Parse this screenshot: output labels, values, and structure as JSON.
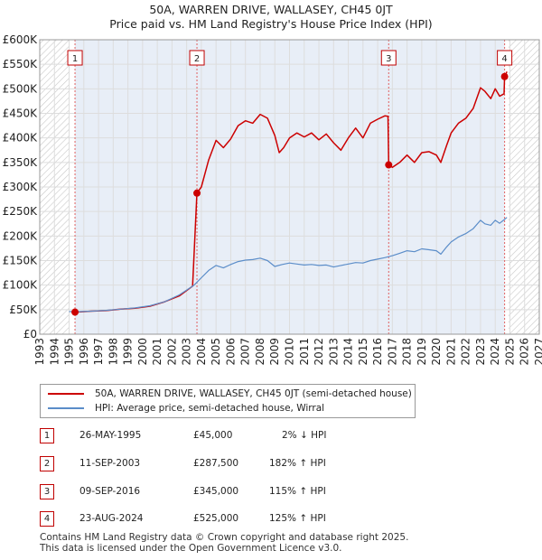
{
  "title_line1": "50A, WARREN DRIVE, WALLASEY, CH45 0JT",
  "title_line2": "Price paid vs. HM Land Registry's House Price Index (HPI)",
  "colors": {
    "price": "#cc0000",
    "hpi": "#5b8dc9",
    "shade": "#e8eef7",
    "hatch": "#c8c8c8",
    "marker_line": "#e06060",
    "grid": "#dddddd"
  },
  "chart_data": {
    "type": "line",
    "title": "Price paid vs. HM Land Registry's House Price Index (HPI)",
    "xlabel": "",
    "ylabel": "",
    "xlim": [
      1993,
      2027
    ],
    "ylim": [
      0,
      600000
    ],
    "x_ticks": [
      "1993",
      "1994",
      "1995",
      "1996",
      "1997",
      "1998",
      "1999",
      "2000",
      "2001",
      "2002",
      "2003",
      "2004",
      "2005",
      "2006",
      "2007",
      "2008",
      "2009",
      "2010",
      "2011",
      "2012",
      "2013",
      "2014",
      "2015",
      "2016",
      "2017",
      "2018",
      "2019",
      "2020",
      "2021",
      "2022",
      "2023",
      "2024",
      "2025",
      "2026",
      "2027"
    ],
    "y_ticks": [
      {
        "value": 0,
        "label": "£0"
      },
      {
        "value": 50000,
        "label": "£50K"
      },
      {
        "value": 100000,
        "label": "£100K"
      },
      {
        "value": 150000,
        "label": "£150K"
      },
      {
        "value": 200000,
        "label": "£200K"
      },
      {
        "value": 250000,
        "label": "£250K"
      },
      {
        "value": 300000,
        "label": "£300K"
      },
      {
        "value": 350000,
        "label": "£350K"
      },
      {
        "value": 400000,
        "label": "£400K"
      },
      {
        "value": 450000,
        "label": "£450K"
      },
      {
        "value": 500000,
        "label": "£500K"
      },
      {
        "value": 550000,
        "label": "£550K"
      },
      {
        "value": 600000,
        "label": "£600K"
      }
    ],
    "data_start": 1995.0,
    "data_end": 2024.9,
    "series": [
      {
        "name": "50A, WARREN DRIVE, WALLASEY, CH45 0JT (semi-detached house)",
        "color": "#cc0000",
        "points": [
          [
            1995.4,
            45000
          ],
          [
            1995.8,
            45500
          ],
          [
            1996.5,
            47000
          ],
          [
            1997.5,
            48000
          ],
          [
            1998.5,
            51000
          ],
          [
            1999.5,
            53000
          ],
          [
            2000.5,
            57000
          ],
          [
            2001.5,
            66000
          ],
          [
            2002.5,
            78000
          ],
          [
            2003.4,
            98000
          ],
          [
            2003.7,
            287500
          ],
          [
            2004.0,
            300000
          ],
          [
            2004.5,
            355000
          ],
          [
            2005.0,
            395000
          ],
          [
            2005.5,
            380000
          ],
          [
            2006.0,
            398000
          ],
          [
            2006.5,
            425000
          ],
          [
            2007.0,
            435000
          ],
          [
            2007.5,
            430000
          ],
          [
            2008.0,
            448000
          ],
          [
            2008.5,
            440000
          ],
          [
            2009.0,
            405000
          ],
          [
            2009.3,
            370000
          ],
          [
            2009.6,
            380000
          ],
          [
            2010.0,
            400000
          ],
          [
            2010.5,
            410000
          ],
          [
            2011.0,
            402000
          ],
          [
            2011.5,
            410000
          ],
          [
            2012.0,
            396000
          ],
          [
            2012.5,
            408000
          ],
          [
            2013.0,
            390000
          ],
          [
            2013.5,
            375000
          ],
          [
            2014.0,
            400000
          ],
          [
            2014.5,
            420000
          ],
          [
            2015.0,
            400000
          ],
          [
            2015.5,
            430000
          ],
          [
            2016.0,
            438000
          ],
          [
            2016.5,
            445000
          ],
          [
            2016.7,
            444000
          ],
          [
            2016.75,
            345000
          ],
          [
            2017.0,
            340000
          ],
          [
            2017.5,
            350000
          ],
          [
            2018.0,
            365000
          ],
          [
            2018.5,
            350000
          ],
          [
            2019.0,
            370000
          ],
          [
            2019.5,
            372000
          ],
          [
            2020.0,
            365000
          ],
          [
            2020.3,
            350000
          ],
          [
            2020.7,
            385000
          ],
          [
            2021.0,
            410000
          ],
          [
            2021.5,
            430000
          ],
          [
            2022.0,
            440000
          ],
          [
            2022.5,
            460000
          ],
          [
            2023.0,
            502000
          ],
          [
            2023.3,
            495000
          ],
          [
            2023.7,
            480000
          ],
          [
            2024.0,
            500000
          ],
          [
            2024.3,
            485000
          ],
          [
            2024.6,
            490000
          ],
          [
            2024.64,
            525000
          ],
          [
            2024.8,
            535000
          ]
        ]
      },
      {
        "name": "HPI: Average price, semi-detached house, Wirral",
        "color": "#5b8dc9",
        "points": [
          [
            1995.0,
            46000
          ],
          [
            1995.5,
            45800
          ],
          [
            1996.5,
            47000
          ],
          [
            1997.5,
            48500
          ],
          [
            1998.5,
            51000
          ],
          [
            1999.5,
            53500
          ],
          [
            2000.5,
            58000
          ],
          [
            2001.5,
            66000
          ],
          [
            2002.5,
            80000
          ],
          [
            2003.5,
            100000
          ],
          [
            2004.0,
            115000
          ],
          [
            2004.5,
            130000
          ],
          [
            2005.0,
            140000
          ],
          [
            2005.5,
            135000
          ],
          [
            2006.0,
            142000
          ],
          [
            2006.5,
            148000
          ],
          [
            2007.0,
            151000
          ],
          [
            2007.5,
            152000
          ],
          [
            2008.0,
            155000
          ],
          [
            2008.5,
            150000
          ],
          [
            2009.0,
            138000
          ],
          [
            2009.5,
            142000
          ],
          [
            2010.0,
            145000
          ],
          [
            2010.5,
            143000
          ],
          [
            2011.0,
            141000
          ],
          [
            2011.5,
            142000
          ],
          [
            2012.0,
            140000
          ],
          [
            2012.5,
            141000
          ],
          [
            2013.0,
            137000
          ],
          [
            2013.5,
            140000
          ],
          [
            2014.0,
            143000
          ],
          [
            2014.5,
            146000
          ],
          [
            2015.0,
            145000
          ],
          [
            2015.5,
            150000
          ],
          [
            2016.0,
            153000
          ],
          [
            2016.5,
            156000
          ],
          [
            2017.0,
            160000
          ],
          [
            2017.5,
            165000
          ],
          [
            2018.0,
            170000
          ],
          [
            2018.5,
            168000
          ],
          [
            2019.0,
            174000
          ],
          [
            2019.5,
            172000
          ],
          [
            2020.0,
            170000
          ],
          [
            2020.3,
            163000
          ],
          [
            2020.7,
            178000
          ],
          [
            2021.0,
            188000
          ],
          [
            2021.5,
            198000
          ],
          [
            2022.0,
            205000
          ],
          [
            2022.5,
            215000
          ],
          [
            2023.0,
            232000
          ],
          [
            2023.3,
            225000
          ],
          [
            2023.7,
            222000
          ],
          [
            2024.0,
            232000
          ],
          [
            2024.3,
            226000
          ],
          [
            2024.6,
            233000
          ],
          [
            2024.8,
            238000
          ]
        ]
      }
    ],
    "sales": [
      {
        "label": "1",
        "x": 1995.4,
        "value": 45000
      },
      {
        "label": "2",
        "x": 2003.7,
        "value": 287500
      },
      {
        "label": "3",
        "x": 2016.75,
        "value": 345000
      },
      {
        "label": "4",
        "x": 2024.64,
        "value": 525000
      }
    ],
    "legend_position": "bottom"
  },
  "legend": {
    "price_label": "50A, WARREN DRIVE, WALLASEY, CH45 0JT (semi-detached house)",
    "hpi_label": "HPI: Average price, semi-detached house, Wirral"
  },
  "transactions": [
    {
      "num": "1",
      "date": "26-MAY-1995",
      "price": "£45,000",
      "hpi": "2% ↓ HPI"
    },
    {
      "num": "2",
      "date": "11-SEP-2003",
      "price": "£287,500",
      "hpi": "182% ↑ HPI"
    },
    {
      "num": "3",
      "date": "09-SEP-2016",
      "price": "£345,000",
      "hpi": "115% ↑ HPI"
    },
    {
      "num": "4",
      "date": "23-AUG-2024",
      "price": "£525,000",
      "hpi": "125% ↑ HPI"
    }
  ],
  "footer_line1": "Contains HM Land Registry data © Crown copyright and database right 2025.",
  "footer_line2": "This data is licensed under the Open Government Licence v3.0."
}
